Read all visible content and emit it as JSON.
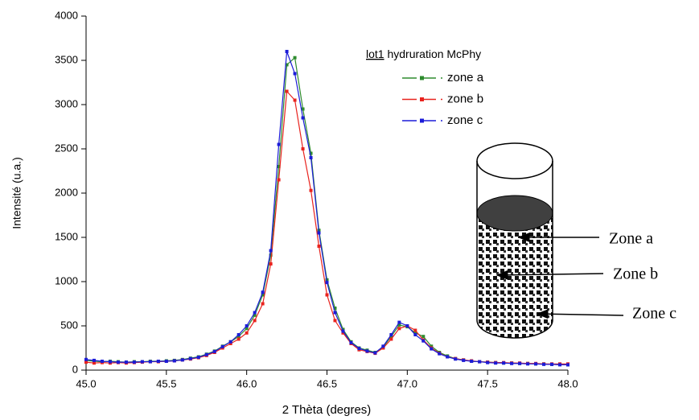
{
  "chart_data": {
    "type": "line",
    "x_label": "2 Thèta (degres)",
    "y_label": "Intensité (u.a.)",
    "legend_title": [
      "lot1",
      "hydruration McPhy"
    ],
    "x": [
      45.0,
      45.05,
      45.1,
      45.15,
      45.2,
      45.25,
      45.3,
      45.35,
      45.4,
      45.45,
      45.5,
      45.55,
      45.6,
      45.65,
      45.7,
      45.75,
      45.8,
      45.85,
      45.9,
      45.95,
      46.0,
      46.05,
      46.1,
      46.15,
      46.2,
      46.25,
      46.3,
      46.35,
      46.4,
      46.45,
      46.5,
      46.55,
      46.6,
      46.65,
      46.7,
      46.75,
      46.8,
      46.85,
      46.9,
      46.95,
      47.0,
      47.05,
      47.1,
      47.15,
      47.2,
      47.25,
      47.3,
      47.35,
      47.4,
      47.45,
      47.5,
      47.55,
      47.6,
      47.65,
      47.7,
      47.75,
      47.8,
      47.85,
      47.9,
      47.95,
      48.0
    ],
    "series": [
      {
        "name": "zone a",
        "color": "#2e8b2e",
        "values": [
          110,
          100,
          95,
          100,
          95,
          90,
          95,
          95,
          100,
          100,
          105,
          110,
          120,
          135,
          150,
          180,
          215,
          270,
          320,
          380,
          470,
          620,
          850,
          1300,
          2300,
          3450,
          3530,
          2950,
          2450,
          1580,
          1020,
          700,
          460,
          320,
          250,
          225,
          200,
          260,
          380,
          510,
          490,
          420,
          380,
          270,
          200,
          160,
          130,
          115,
          100,
          95,
          90,
          85,
          80,
          80,
          75,
          75,
          70,
          70,
          65,
          65,
          60
        ]
      },
      {
        "name": "zone b",
        "color": "#e8231e",
        "values": [
          90,
          80,
          85,
          80,
          85,
          80,
          85,
          90,
          95,
          95,
          100,
          105,
          115,
          125,
          140,
          165,
          200,
          250,
          300,
          350,
          420,
          560,
          750,
          1200,
          2150,
          3150,
          3050,
          2500,
          2030,
          1400,
          850,
          560,
          420,
          300,
          230,
          210,
          190,
          250,
          350,
          470,
          500,
          450,
          340,
          250,
          190,
          150,
          130,
          115,
          105,
          95,
          90,
          85,
          85,
          80,
          80,
          75,
          75,
          70,
          70,
          70,
          70
        ]
      },
      {
        "name": "zone c",
        "color": "#1c1cd8",
        "values": [
          120,
          110,
          100,
          95,
          90,
          90,
          90,
          95,
          95,
          100,
          100,
          105,
          115,
          130,
          145,
          175,
          210,
          265,
          320,
          400,
          500,
          650,
          880,
          1350,
          2550,
          3600,
          3350,
          2850,
          2400,
          1550,
          990,
          650,
          440,
          310,
          245,
          215,
          195,
          270,
          400,
          540,
          500,
          400,
          330,
          240,
          185,
          150,
          125,
          110,
          100,
          95,
          85,
          80,
          80,
          75,
          75,
          70,
          70,
          65,
          65,
          60,
          60
        ]
      }
    ],
    "xlim": [
      45.0,
      48.0
    ],
    "ylim": [
      0,
      4000
    ],
    "xticks": [
      {
        "value": 45.0,
        "label": "45.0"
      },
      45.5,
      {
        "value": 46.0,
        "label": "46.0"
      },
      46.5,
      {
        "value": 47.0,
        "label": "47.0"
      },
      47.5,
      {
        "value": 48.0,
        "label": "48.0"
      }
    ],
    "yticks": [
      0,
      500,
      1000,
      1500,
      2000,
      2500,
      3000,
      3500,
      4000
    ],
    "annotations": [
      "Zone a",
      "Zone b",
      "Zone c"
    ]
  }
}
